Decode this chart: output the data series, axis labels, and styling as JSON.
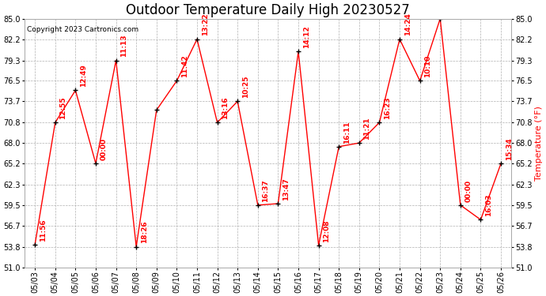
{
  "title": "Outdoor Temperature Daily High 20230527",
  "ylabel": "Temperature (°F)",
  "copyright": "Copyright 2023 Cartronics.com",
  "background_color": "#ffffff",
  "grid_color": "#b0b0b0",
  "line_color": "red",
  "marker_color": "black",
  "label_color": "red",
  "points": [
    {
      "date": "05/03",
      "temp": 54.1,
      "label": "11:56"
    },
    {
      "date": "05/04",
      "temp": 70.8,
      "label": "12:55"
    },
    {
      "date": "05/05",
      "temp": 75.2,
      "label": "12:49"
    },
    {
      "date": "05/06",
      "temp": 65.2,
      "label": "00:00"
    },
    {
      "date": "05/07",
      "temp": 79.3,
      "label": "11:13"
    },
    {
      "date": "05/08",
      "temp": 53.8,
      "label": "18:26"
    },
    {
      "date": "05/09",
      "temp": 72.5,
      "label": null
    },
    {
      "date": "05/10",
      "temp": 76.5,
      "label": "11:42"
    },
    {
      "date": "05/11",
      "temp": 82.2,
      "label": "13:22"
    },
    {
      "date": "05/12",
      "temp": 70.8,
      "label": "13:16"
    },
    {
      "date": "05/13",
      "temp": 73.7,
      "label": "10:25"
    },
    {
      "date": "05/14",
      "temp": 59.5,
      "label": "16:37"
    },
    {
      "date": "05/15",
      "temp": 59.7,
      "label": "13:47"
    },
    {
      "date": "05/16",
      "temp": 80.5,
      "label": "14:12"
    },
    {
      "date": "05/17",
      "temp": 54.0,
      "label": "12:08"
    },
    {
      "date": "05/18",
      "temp": 67.5,
      "label": "16:11"
    },
    {
      "date": "05/19",
      "temp": 68.0,
      "label": "11:21"
    },
    {
      "date": "05/20",
      "temp": 70.8,
      "label": "16:23"
    },
    {
      "date": "05/21",
      "temp": 82.2,
      "label": "14:24"
    },
    {
      "date": "05/22",
      "temp": 76.5,
      "label": "10:10"
    },
    {
      "date": "05/23",
      "temp": 85.0,
      "label": null
    },
    {
      "date": "05/24",
      "temp": 59.5,
      "label": "00:00"
    },
    {
      "date": "05/25",
      "temp": 57.5,
      "label": "16:03"
    },
    {
      "date": "05/26",
      "temp": 65.2,
      "label": "15:34"
    }
  ],
  "ylim": [
    51.0,
    85.0
  ],
  "yticks": [
    51.0,
    53.8,
    56.7,
    59.5,
    62.3,
    65.2,
    68.0,
    70.8,
    73.7,
    76.5,
    79.3,
    82.2,
    85.0
  ],
  "title_fontsize": 12,
  "label_fontsize": 6.5,
  "tick_fontsize": 7,
  "copyright_fontsize": 6.5,
  "figsize": [
    6.9,
    3.75
  ],
  "dpi": 100
}
